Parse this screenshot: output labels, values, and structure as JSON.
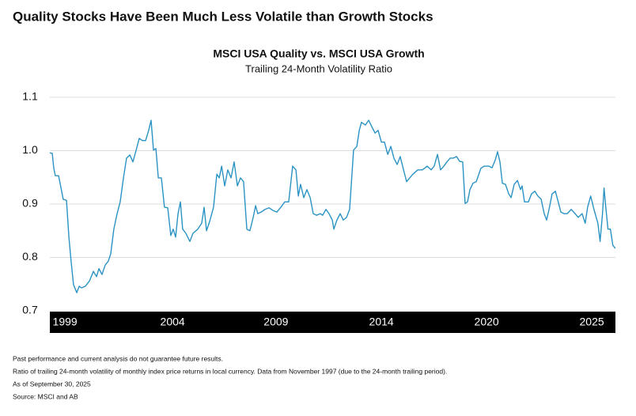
{
  "page_title": "Quality Stocks Have Been Much Less Volatile than Growth Stocks",
  "chart_data": {
    "type": "line",
    "title": "MSCI USA Quality vs. MSCI USA Growth",
    "subtitle": "Trailing 24-Month Volatility Ratio",
    "color": "#2b93c3",
    "x": [
      1999.9,
      2000.01,
      2000.08,
      2000.15,
      2000.3,
      2000.41,
      2000.51,
      2000.66,
      2000.77,
      2000.87,
      2000.98,
      2001.13,
      2001.24,
      2001.34,
      2001.52,
      2001.71,
      2001.89,
      2002.03,
      2002.14,
      2002.28,
      2002.43,
      2002.57,
      2002.68,
      2002.82,
      2002.97,
      2003.11,
      2003.26,
      2003.4,
      2003.55,
      2003.69,
      2003.84,
      2003.98,
      2004.12,
      2004.27,
      2004.41,
      2004.52,
      2004.63,
      2004.74,
      2004.85,
      2004.99,
      2005.13,
      2005.28,
      2005.42,
      2005.53,
      2005.64,
      2005.75,
      2005.86,
      2005.96,
      2006.11,
      2006.29,
      2006.43,
      2006.65,
      2006.83,
      2006.94,
      2007.05,
      2007.19,
      2007.37,
      2007.52,
      2007.63,
      2007.74,
      2007.88,
      2008.02,
      2008.17,
      2008.31,
      2008.46,
      2008.6,
      2008.74,
      2008.89,
      2009.03,
      2009.18,
      2009.29,
      2009.39,
      2009.54,
      2009.72,
      2009.9,
      2010.08,
      2010.26,
      2010.44,
      2010.62,
      2010.8,
      2010.98,
      2011.13,
      2011.24,
      2011.34,
      2011.49,
      2011.63,
      2011.78,
      2011.92,
      2012.07,
      2012.25,
      2012.35,
      2012.5,
      2012.64,
      2012.79,
      2012.86,
      2013.0,
      2013.15,
      2013.29,
      2013.44,
      2013.58,
      2013.76,
      2013.91,
      2014.02,
      2014.12,
      2014.3,
      2014.45,
      2014.59,
      2014.74,
      2014.88,
      2015.03,
      2015.17,
      2015.32,
      2015.46,
      2015.6,
      2015.75,
      2015.89,
      2016.04,
      2016.18,
      2016.32,
      2016.47,
      2016.69,
      2016.9,
      2017.12,
      2017.3,
      2017.44,
      2017.59,
      2017.73,
      2017.88,
      2018.02,
      2018.17,
      2018.31,
      2018.46,
      2018.6,
      2018.74,
      2018.85,
      2018.96,
      2019.07,
      2019.21,
      2019.36,
      2019.57,
      2019.72,
      2019.94,
      2020.08,
      2020.23,
      2020.33,
      2020.44,
      2020.55,
      2020.69,
      2020.84,
      2020.95,
      2021.09,
      2021.24,
      2021.38,
      2021.45,
      2021.56,
      2021.74,
      2021.88,
      2022.03,
      2022.17,
      2022.32,
      2022.46,
      2022.57,
      2022.68,
      2022.82,
      2022.97,
      2023.08,
      2023.22,
      2023.36,
      2023.51,
      2023.69,
      2023.87,
      2024.01,
      2024.19,
      2024.33,
      2024.44,
      2024.58,
      2024.73,
      2024.91,
      2025.01,
      2025.12,
      2025.19,
      2025.27,
      2025.37,
      2025.48,
      2025.59,
      2025.7
    ],
    "values": [
      0.996,
      0.995,
      0.967,
      0.953,
      0.953,
      0.93,
      0.909,
      0.907,
      0.838,
      0.793,
      0.749,
      0.734,
      0.746,
      0.743,
      0.746,
      0.756,
      0.774,
      0.764,
      0.779,
      0.768,
      0.786,
      0.793,
      0.807,
      0.853,
      0.882,
      0.904,
      0.949,
      0.986,
      0.992,
      0.979,
      1.001,
      1.023,
      1.019,
      1.019,
      1.038,
      1.057,
      1.001,
      1.004,
      0.949,
      0.949,
      0.894,
      0.893,
      0.841,
      0.853,
      0.838,
      0.882,
      0.904,
      0.853,
      0.845,
      0.83,
      0.845,
      0.853,
      0.864,
      0.894,
      0.85,
      0.867,
      0.894,
      0.956,
      0.949,
      0.971,
      0.934,
      0.964,
      0.949,
      0.979,
      0.934,
      0.949,
      0.942,
      0.853,
      0.85,
      0.875,
      0.897,
      0.882,
      0.885,
      0.89,
      0.893,
      0.888,
      0.885,
      0.894,
      0.904,
      0.904,
      0.971,
      0.964,
      0.915,
      0.937,
      0.912,
      0.927,
      0.912,
      0.882,
      0.879,
      0.882,
      0.879,
      0.89,
      0.882,
      0.87,
      0.853,
      0.87,
      0.882,
      0.87,
      0.875,
      0.89,
      1.001,
      1.008,
      1.038,
      1.053,
      1.048,
      1.057,
      1.045,
      1.033,
      1.038,
      1.016,
      1.016,
      0.993,
      1.008,
      0.986,
      0.974,
      0.989,
      0.964,
      0.942,
      0.949,
      0.956,
      0.964,
      0.964,
      0.971,
      0.964,
      0.971,
      0.993,
      0.964,
      0.971,
      0.979,
      0.986,
      0.986,
      0.989,
      0.98,
      0.979,
      0.901,
      0.904,
      0.927,
      0.939,
      0.942,
      0.967,
      0.971,
      0.971,
      0.968,
      0.983,
      0.998,
      0.979,
      0.939,
      0.937,
      0.919,
      0.912,
      0.937,
      0.944,
      0.927,
      0.934,
      0.904,
      0.904,
      0.919,
      0.924,
      0.915,
      0.909,
      0.882,
      0.87,
      0.89,
      0.919,
      0.924,
      0.907,
      0.885,
      0.882,
      0.882,
      0.89,
      0.882,
      0.875,
      0.882,
      0.864,
      0.894,
      0.915,
      0.89,
      0.864,
      0.83,
      0.882,
      0.93,
      0.894,
      0.853,
      0.853,
      0.823,
      0.817
    ],
    "xlim": [
      1999.9,
      2025.71
    ],
    "xticks": [
      {
        "value": 2000.59,
        "label": "1999"
      },
      {
        "value": 2005.5,
        "label": "2004"
      },
      {
        "value": 2010.22,
        "label": "2009"
      },
      {
        "value": 2015.03,
        "label": "2014"
      },
      {
        "value": 2019.83,
        "label": "2020"
      },
      {
        "value": 2024.63,
        "label": "2025"
      }
    ],
    "ylim": [
      0.7,
      1.1
    ],
    "yticks": [
      0.7,
      0.8,
      0.9,
      {
        "value": 1.0,
        "label": "1.0"
      },
      1.1
    ],
    "grid": true
  },
  "notes": [
    "Past performance and current analysis do not guarantee future results.",
    "Ratio of trailing 24-month volatility of monthly index price returns in local currency. Data from November 1997 (due to the 24-month trailing period).",
    "As of September 30, 2025",
    "Source: MSCI and AB"
  ]
}
